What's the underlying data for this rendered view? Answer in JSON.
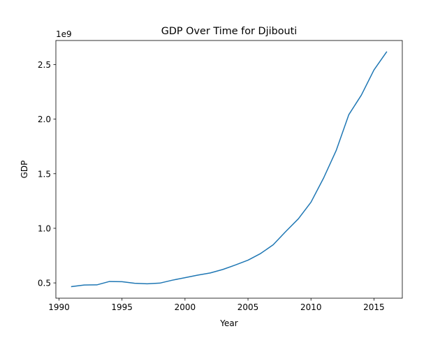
{
  "chart_data": {
    "type": "line",
    "title": "GDP Over Time for Djibouti",
    "xlabel": "Year",
    "ylabel": "GDP",
    "offset_label": "1e9",
    "xlim": [
      1989.75,
      2017.25
    ],
    "ylim": [
      0.36,
      2.72
    ],
    "x_ticks": [
      1990,
      1995,
      2000,
      2005,
      2010,
      2015
    ],
    "x_tick_labels": [
      "1990",
      "1995",
      "2000",
      "2005",
      "2010",
      "2015"
    ],
    "y_ticks": [
      0.5,
      1.0,
      1.5,
      2.0,
      2.5
    ],
    "y_tick_labels": [
      "0.5",
      "1.0",
      "1.5",
      "2.0",
      "2.5"
    ],
    "grid": false,
    "series_color": "#1f77b4",
    "series": [
      {
        "x": [
          1991,
          1992,
          1993,
          1994,
          1995,
          1996,
          1997,
          1998,
          1999,
          2000,
          2001,
          2002,
          2003,
          2004,
          2005,
          2006,
          2007,
          2008,
          2009,
          2010,
          2011,
          2012,
          2013,
          2014,
          2015,
          2016
        ],
        "values": [
          0.466,
          0.481,
          0.482,
          0.513,
          0.511,
          0.497,
          0.492,
          0.498,
          0.525,
          0.548,
          0.571,
          0.591,
          0.623,
          0.664,
          0.708,
          0.769,
          0.849,
          0.971,
          1.087,
          1.239,
          1.46,
          1.712,
          2.04,
          2.22,
          2.45,
          2.615
        ]
      }
    ]
  }
}
